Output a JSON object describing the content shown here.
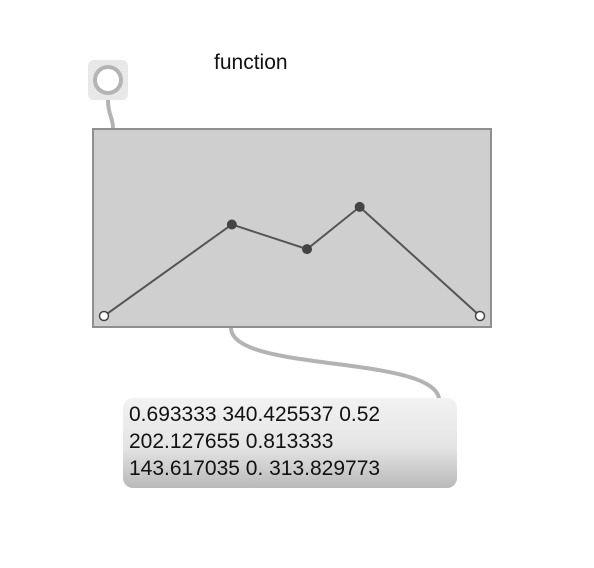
{
  "comment": {
    "text": "function"
  },
  "message": {
    "lines": [
      "0.693333 340.425537 0.52",
      "202.127655 0.813333",
      "143.617035 0. 313.829773"
    ]
  },
  "function_editor": {
    "points": [
      {
        "x": 0.0,
        "y": 0.0
      },
      {
        "x": 0.34,
        "y": 0.52
      },
      {
        "x": 0.54,
        "y": 0.38
      },
      {
        "x": 0.68,
        "y": 0.62
      },
      {
        "x": 1.0,
        "y": 0.0
      }
    ],
    "endpoint_style": "hollow",
    "interior_point_style": "filled"
  },
  "colors": {
    "background": "#ffffff",
    "box_fill": "#cfcfcf",
    "box_border": "#8f8f8f",
    "line": "#555555",
    "point": "#444444",
    "cord": "#b3b3b3"
  }
}
